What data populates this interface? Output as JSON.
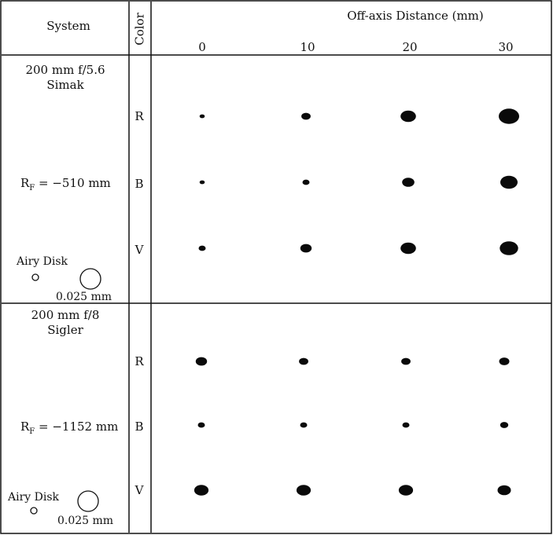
{
  "header": {
    "system": "System",
    "color": "Color",
    "offaxis_title": "Off-axis Distance (mm)",
    "distances": [
      "0",
      "10",
      "20",
      "30"
    ]
  },
  "systems": [
    {
      "name_line1": "200 mm f/5.6",
      "name_line2": "Simak",
      "rf_label": "R",
      "rf_sub": "F",
      "rf_value": " = −510 mm",
      "airy_label": "Airy Disk",
      "scale_label": "0.025 mm",
      "colors": [
        "R",
        "B",
        "V"
      ],
      "spot_sizes_relative": [
        [
          0.25,
          0.45,
          0.75,
          1.0
        ],
        [
          0.25,
          0.35,
          0.6,
          0.85
        ],
        [
          0.35,
          0.55,
          0.75,
          0.9
        ]
      ]
    },
    {
      "name_line1": "200 mm f/8",
      "name_line2": "Sigler",
      "rf_label": "R",
      "rf_sub": "F",
      "rf_value": " = −1152 mm",
      "airy_label": "Airy Disk",
      "scale_label": "0.025 mm",
      "colors": [
        "R",
        "B",
        "V"
      ],
      "spot_sizes_relative": [
        [
          0.55,
          0.45,
          0.45,
          0.5
        ],
        [
          0.35,
          0.35,
          0.35,
          0.4
        ],
        [
          0.7,
          0.7,
          0.7,
          0.65
        ]
      ]
    }
  ],
  "colors": {
    "line": "#111111",
    "spot": "#0a0a0a",
    "background": "#ffffff"
  }
}
